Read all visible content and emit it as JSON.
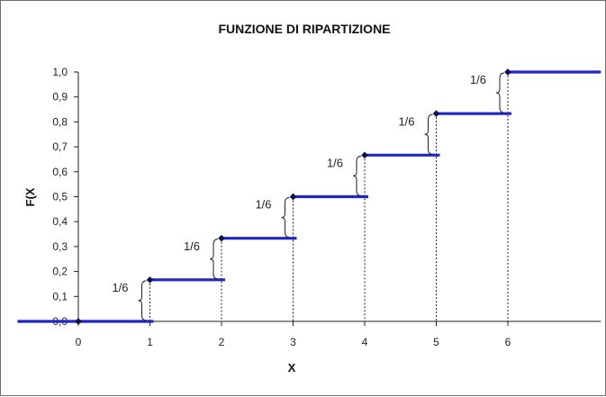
{
  "colors": {
    "step": "#1f27c2",
    "point": "#10104a",
    "axis": "#222222",
    "guide": "#222222",
    "frame": "#6d6d6d"
  },
  "chart_data": {
    "type": "line",
    "subtype": "step-cdf",
    "title": "FUNZIONE DI RIPARTIZIONE",
    "xlabel": "X",
    "ylabel": "F(X",
    "xlim": [
      -0.85,
      7.3
    ],
    "ylim": [
      0,
      1
    ],
    "x_ticks": [
      0,
      1,
      2,
      3,
      4,
      5,
      6
    ],
    "x_tick_labels": [
      "0",
      "1",
      "2",
      "3",
      "4",
      "5",
      "6"
    ],
    "y_ticks": [
      0,
      0.1,
      0.2,
      0.3,
      0.4,
      0.5,
      0.6,
      0.7,
      0.8,
      0.9,
      1.0
    ],
    "y_tick_labels": [
      "0,0",
      "0,1",
      "0,2",
      "0,3",
      "0,4",
      "0,5",
      "0,6",
      "0,7",
      "0,8",
      "0,9",
      "1,0"
    ],
    "grid": false,
    "legend": "none",
    "steps": [
      {
        "x_start": -0.85,
        "x_end": 1.05,
        "y": 0.0
      },
      {
        "x_start": 1.0,
        "x_end": 2.05,
        "y": 0.1667
      },
      {
        "x_start": 2.0,
        "x_end": 3.05,
        "y": 0.3333
      },
      {
        "x_start": 3.0,
        "x_end": 4.05,
        "y": 0.5
      },
      {
        "x_start": 4.0,
        "x_end": 5.05,
        "y": 0.6667
      },
      {
        "x_start": 5.0,
        "x_end": 6.05,
        "y": 0.8333
      },
      {
        "x_start": 6.0,
        "x_end": 7.3,
        "y": 1.0
      }
    ],
    "points": [
      {
        "x": 0,
        "y": 0.0
      },
      {
        "x": 1,
        "y": 0.1667
      },
      {
        "x": 2,
        "y": 0.3333
      },
      {
        "x": 3,
        "y": 0.5
      },
      {
        "x": 4,
        "y": 0.6667
      },
      {
        "x": 5,
        "y": 0.8333
      },
      {
        "x": 6,
        "y": 1.0
      }
    ],
    "jump_annotations": [
      {
        "x": 1,
        "y_from": 0.0,
        "y_to": 0.1667,
        "label": "1/6"
      },
      {
        "x": 2,
        "y_from": 0.1667,
        "y_to": 0.3333,
        "label": "1/6"
      },
      {
        "x": 3,
        "y_from": 0.3333,
        "y_to": 0.5,
        "label": "1/6"
      },
      {
        "x": 4,
        "y_from": 0.5,
        "y_to": 0.6667,
        "label": "1/6"
      },
      {
        "x": 5,
        "y_from": 0.6667,
        "y_to": 0.8333,
        "label": "1/6"
      },
      {
        "x": 6,
        "y_from": 0.8333,
        "y_to": 1.0,
        "label": "1/6"
      }
    ]
  }
}
